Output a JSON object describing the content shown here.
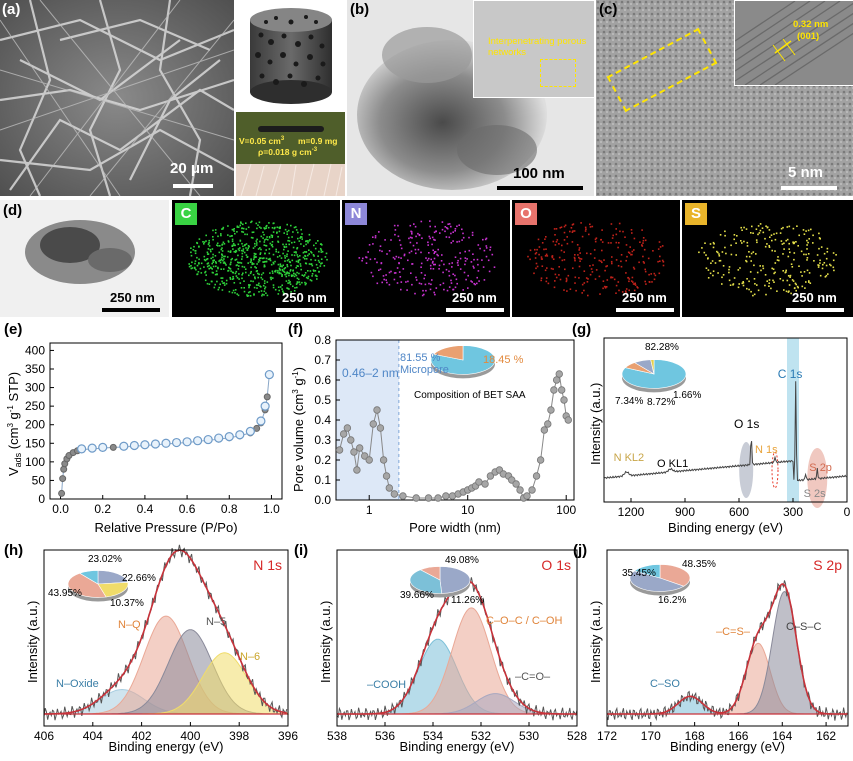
{
  "panels": {
    "a": {
      "label": "(a)",
      "scale": "20 μm",
      "annotations": [
        "V=0.05 cm",
        "m=0.9 mg",
        "ρ=0.018 g cm"
      ]
    },
    "b": {
      "label": "(b)",
      "scale": "100 nm",
      "inset_text": "Interpenetrating porous networks"
    },
    "c": {
      "label": "(c)",
      "scale": "5 nm",
      "inset_text_1": "0.32 nm",
      "inset_text_2": "(001)"
    },
    "d": {
      "label": "(d)",
      "scale": "250 nm",
      "maps": [
        {
          "element": "C",
          "color": "#39d343",
          "dot": "#2ed33a",
          "scale": "250 nm"
        },
        {
          "element": "N",
          "color": "#8d87d8",
          "dot": "#c832d0",
          "scale": "250 nm"
        },
        {
          "element": "O",
          "color": "#e7736c",
          "dot": "#c0221a",
          "scale": "250 nm"
        },
        {
          "element": "S",
          "color": "#e9b42a",
          "dot": "#e5e04a",
          "scale": "250 nm"
        }
      ]
    },
    "e": {
      "label": "(e)",
      "ylabel": "V",
      "ylabel_sub": "ads",
      "ylabel_rest": " (cm",
      "ylabel_end": " STP)",
      "xlabel": "Relative Pressure (P/Po)"
    },
    "f": {
      "label": "(f)",
      "ylabel": "Pore volume (cm",
      "ylabel_end": " g",
      "xlabel": "Pore width (nm)",
      "band_label": "0.46–2 nm",
      "pie_title": "Composition of BET SAA",
      "micro_pct": "81.55 %",
      "micro_label": "Micropore",
      "meso_pct": "18.45 %"
    },
    "g": {
      "label": "(g)",
      "ylabel": "Intensity (a.u.)",
      "xlabel": "Binding energy (eV)",
      "peaks": [
        "C 1s",
        "O 1s",
        "N 1s",
        "S 2p",
        "S 2s",
        "N KL2",
        "O KL1"
      ],
      "pie": [
        "82.28%",
        "7.34%",
        "8.72%",
        "1.66%"
      ]
    },
    "h": {
      "label": "(h)",
      "title": "N 1s",
      "ylabel": "Intensity (a.u.)",
      "xlabel": "Binding energy (eV)",
      "components": [
        "N–Q",
        "N–5",
        "N–6",
        "N–Oxide"
      ],
      "pie": [
        "23.02%",
        "22.66%",
        "43.95%",
        "10.37%"
      ]
    },
    "i": {
      "label": "(i)",
      "title": "O 1s",
      "ylabel": "Intensity (a.u.)",
      "xlabel": "Binding energy (eV)",
      "components": [
        "C–O–C / C–OH",
        "–COOH",
        "–C=O–"
      ],
      "pie": [
        "49.08%",
        "39.66%",
        "11.26%"
      ]
    },
    "j": {
      "label": "(j)",
      "title": "S 2p",
      "ylabel": "Intensity (a.u.)",
      "xlabel": "Binding energy (eV)",
      "components": [
        "C–S–C",
        "–C=S–",
        "C–SO",
        "–C"
      ],
      "pie": [
        "35.45%",
        "48.35%",
        "16.2%"
      ]
    }
  },
  "chart_data": [
    {
      "type": "scatter",
      "id": "e",
      "xlabel": "Relative Pressure (P/Po)",
      "ylabel": "Vads (cm3 g-1 STP)",
      "xlim": [
        -0.05,
        1.05
      ],
      "ylim": [
        0,
        420
      ],
      "xticks": [
        "0.0",
        "0.2",
        "0.4",
        "0.6",
        "0.8",
        "1.0"
      ],
      "yticks": [
        "0",
        "50",
        "100",
        "150",
        "200",
        "250",
        "300",
        "350",
        "400"
      ],
      "series": [
        {
          "values": [
            [
              0.005,
              15
            ],
            [
              0.01,
              55
            ],
            [
              0.015,
              80
            ],
            [
              0.02,
              95
            ],
            [
              0.03,
              108
            ],
            [
              0.04,
              117
            ],
            [
              0.06,
              125
            ],
            [
              0.08,
              130
            ],
            [
              0.1,
              133
            ],
            [
              0.15,
              135
            ],
            [
              0.2,
              137
            ],
            [
              0.25,
              139
            ],
            [
              0.3,
              140
            ],
            [
              0.35,
              142
            ],
            [
              0.4,
              144
            ],
            [
              0.45,
              146
            ],
            [
              0.5,
              148
            ],
            [
              0.55,
              150
            ],
            [
              0.6,
              152
            ],
            [
              0.65,
              155
            ],
            [
              0.7,
              158
            ],
            [
              0.75,
              161
            ],
            [
              0.8,
              165
            ],
            [
              0.85,
              170
            ],
            [
              0.9,
              178
            ],
            [
              0.93,
              190
            ],
            [
              0.95,
              205
            ],
            [
              0.97,
              240
            ],
            [
              0.98,
              275
            ],
            [
              0.99,
              335
            ]
          ]
        },
        {
          "values": [
            [
              0.99,
              335
            ],
            [
              0.97,
              250
            ],
            [
              0.95,
              210
            ],
            [
              0.9,
              182
            ],
            [
              0.85,
              173
            ],
            [
              0.8,
              168
            ],
            [
              0.75,
              164
            ],
            [
              0.7,
              160
            ],
            [
              0.65,
              157
            ],
            [
              0.6,
              154
            ],
            [
              0.55,
              152
            ],
            [
              0.5,
              150
            ],
            [
              0.45,
              148
            ],
            [
              0.4,
              146
            ],
            [
              0.35,
              144
            ],
            [
              0.3,
              142
            ],
            [
              0.2,
              139
            ],
            [
              0.15,
              137
            ],
            [
              0.1,
              135
            ]
          ]
        }
      ]
    },
    {
      "type": "line",
      "id": "f",
      "xlabel": "Pore width (nm)",
      "ylabel": "Pore volume (cm3 g-1)",
      "xscale": "log",
      "xlim": [
        0.46,
        120
      ],
      "ylim": [
        0,
        0.8
      ],
      "xticks": [
        "1",
        "10",
        "100"
      ],
      "yticks": [
        "0.0",
        "0.1",
        "0.2",
        "0.3",
        "0.4",
        "0.5",
        "0.6",
        "0.7",
        "0.8"
      ],
      "values": [
        [
          0.5,
          0.25
        ],
        [
          0.55,
          0.33
        ],
        [
          0.6,
          0.36
        ],
        [
          0.65,
          0.3
        ],
        [
          0.7,
          0.24
        ],
        [
          0.75,
          0.15
        ],
        [
          0.8,
          0.26
        ],
        [
          0.9,
          0.22
        ],
        [
          1.0,
          0.2
        ],
        [
          1.1,
          0.38
        ],
        [
          1.2,
          0.45
        ],
        [
          1.3,
          0.36
        ],
        [
          1.4,
          0.2
        ],
        [
          1.5,
          0.12
        ],
        [
          1.6,
          0.06
        ],
        [
          1.8,
          0.03
        ],
        [
          2.2,
          0.02
        ],
        [
          3,
          0.01
        ],
        [
          4,
          0.01
        ],
        [
          5,
          0.01
        ],
        [
          6,
          0.02
        ],
        [
          7,
          0.02
        ],
        [
          8,
          0.03
        ],
        [
          9,
          0.04
        ],
        [
          10,
          0.05
        ],
        [
          11,
          0.06
        ],
        [
          12,
          0.07
        ],
        [
          13,
          0.09
        ],
        [
          15,
          0.08
        ],
        [
          17,
          0.12
        ],
        [
          19,
          0.14
        ],
        [
          21,
          0.15
        ],
        [
          23,
          0.13
        ],
        [
          26,
          0.12
        ],
        [
          28,
          0.1
        ],
        [
          31,
          0.08
        ],
        [
          34,
          0.05
        ],
        [
          37,
          0.01
        ],
        [
          40,
          0.02
        ],
        [
          45,
          0.05
        ],
        [
          50,
          0.12
        ],
        [
          55,
          0.2
        ],
        [
          60,
          0.35
        ],
        [
          65,
          0.38
        ],
        [
          70,
          0.45
        ],
        [
          75,
          0.55
        ],
        [
          80,
          0.6
        ],
        [
          85,
          0.63
        ],
        [
          90,
          0.55
        ],
        [
          95,
          0.5
        ],
        [
          100,
          0.42
        ],
        [
          105,
          0.4
        ]
      ],
      "pie": [
        {
          "name": "Micropore",
          "value": 81.55
        },
        {
          "name": "",
          "value": 18.45
        }
      ]
    },
    {
      "type": "line",
      "id": "g",
      "xlabel": "Binding energy (eV)",
      "ylabel": "Intensity (a.u.)",
      "xlim": [
        1350,
        0
      ],
      "xticks": [
        "1200",
        "900",
        "600",
        "300",
        "0"
      ],
      "pie": [
        82.28,
        7.34,
        8.72,
        1.66
      ]
    },
    {
      "type": "area",
      "id": "h",
      "title": "N 1s",
      "xlabel": "Binding energy (eV)",
      "ylabel": "Intensity (a.u.)",
      "xlim": [
        406,
        396
      ],
      "xticks": [
        "406",
        "404",
        "402",
        "400",
        "398",
        "396"
      ],
      "series": [
        {
          "name": "N–Oxide",
          "center": 402.8,
          "height": 0.18
        },
        {
          "name": "N–Q",
          "center": 401.0,
          "height": 0.72
        },
        {
          "name": "N–5",
          "center": 400.0,
          "height": 0.62
        },
        {
          "name": "N–6",
          "center": 398.6,
          "height": 0.45
        }
      ],
      "pie": [
        23.02,
        22.66,
        43.95,
        10.37
      ]
    },
    {
      "type": "area",
      "id": "i",
      "title": "O 1s",
      "xlabel": "Binding energy (eV)",
      "ylabel": "Intensity (a.u.)",
      "xlim": [
        538,
        528
      ],
      "xticks": [
        "538",
        "536",
        "534",
        "532",
        "530",
        "528"
      ],
      "series": [
        {
          "name": "–COOH",
          "center": 533.8,
          "height": 0.55
        },
        {
          "name": "C–O–C / C–OH",
          "center": 532.4,
          "height": 0.78
        },
        {
          "name": "–C=O–",
          "center": 531.4,
          "height": 0.15
        }
      ],
      "pie": [
        49.08,
        39.66,
        11.26
      ]
    },
    {
      "type": "area",
      "id": "j",
      "title": "S 2p",
      "xlabel": "Binding energy (eV)",
      "ylabel": "Intensity (a.u.)",
      "xlim": [
        172,
        161
      ],
      "xticks": [
        "172",
        "170",
        "168",
        "166",
        "164",
        "162"
      ],
      "series": [
        {
          "name": "C–SO–C",
          "center": 168.2,
          "height": 0.13
        },
        {
          "name": "–C=S–",
          "center": 165.1,
          "height": 0.52
        },
        {
          "name": "C–S–C",
          "center": 163.9,
          "height": 0.9
        }
      ],
      "pie": [
        35.45,
        48.35,
        16.2
      ]
    }
  ]
}
